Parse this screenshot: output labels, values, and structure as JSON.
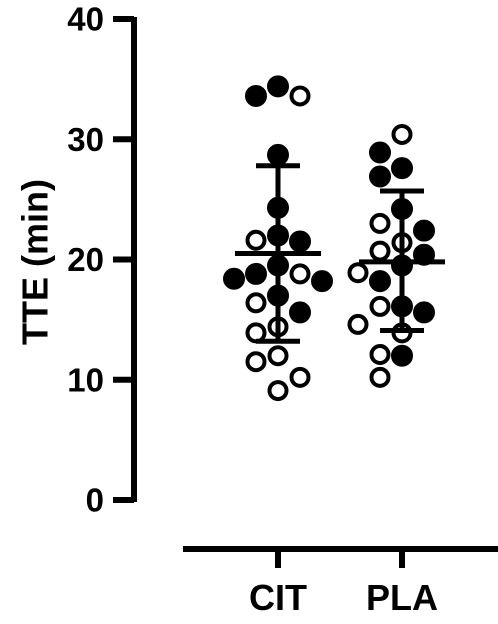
{
  "chart_data": {
    "type": "scatter",
    "ylabel": "TTE (min)",
    "ylim": [
      0,
      40
    ],
    "yticks": [
      0,
      10,
      20,
      30,
      40
    ],
    "categories": [
      "CIT",
      "PLA"
    ],
    "groups": [
      {
        "category": "CIT",
        "mean": 20.5,
        "sd_low": 13.2,
        "sd_high": 27.8,
        "filled": [
          34.4,
          33.6,
          28.7,
          24.3,
          22.0,
          21.5,
          19.5,
          18.8,
          18.4,
          18.2,
          17.0,
          15.6
        ],
        "open": [
          33.6,
          21.6,
          18.8,
          16.4,
          14.4,
          13.9,
          12.0,
          11.5,
          10.2,
          9.1
        ]
      },
      {
        "category": "PLA",
        "mean": 19.8,
        "sd_low": 14.1,
        "sd_high": 25.7,
        "filled": [
          28.9,
          27.6,
          26.9,
          24.2,
          22.4,
          20.4,
          19.5,
          18.2,
          16.1,
          15.6,
          12.0
        ],
        "open": [
          30.4,
          23.0,
          21.4,
          20.7,
          18.9,
          16.1,
          14.6,
          13.9,
          12.1,
          10.2
        ]
      }
    ],
    "marker_colors": {
      "filled": "#000000",
      "open": "#ffffff",
      "stroke": "#000000"
    }
  }
}
